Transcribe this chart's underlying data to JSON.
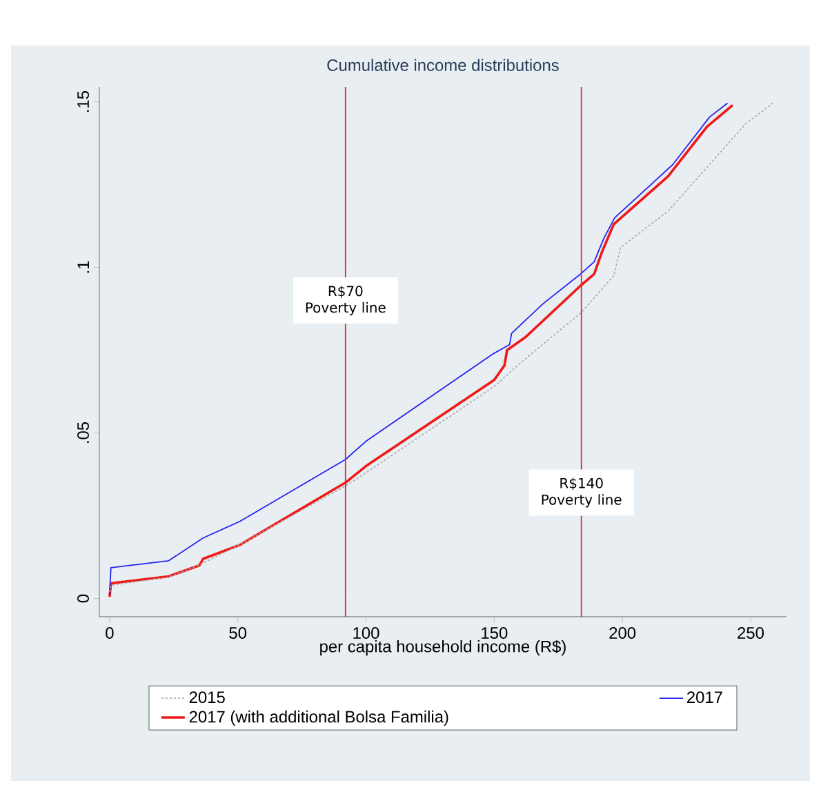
{
  "chart_data": {
    "type": "line",
    "title": "Cumulative income distributions",
    "xlabel": "per capita household income (R$)",
    "xlim": [
      -4,
      264
    ],
    "ylim": [
      -0.0055,
      0.1545
    ],
    "xticks": [
      0,
      50,
      100,
      150,
      200,
      250
    ],
    "yticks": [
      0,
      {
        "value": 0.05,
        "label": ".05"
      },
      {
        "value": 0.1,
        "label": ".1"
      },
      {
        "value": 0.15,
        "label": ".15"
      }
    ],
    "grid": "y",
    "legend": "bottom",
    "series": [
      {
        "name": "2015",
        "color": "#a8a8a8",
        "line_style": "dashed",
        "x": [
          0,
          0.5,
          23,
          36,
          50,
          92,
          100,
          150,
          160,
          184,
          196.6,
          199.3,
          217.8,
          248,
          258.7
        ],
        "values": [
          0.002,
          0.004,
          0.0065,
          0.0105,
          0.016,
          0.034,
          0.038,
          0.064,
          0.071,
          0.0864,
          0.0975,
          0.106,
          0.117,
          0.1433,
          0.1496
        ]
      },
      {
        "name": "2017",
        "color": "#2424f0",
        "line_style": "solid",
        "x": [
          0,
          0.5,
          23,
          36.5,
          50.8,
          92,
          100,
          149.6,
          156,
          156.8,
          169,
          184,
          189,
          192.7,
          197,
          219.6,
          234,
          241
        ],
        "values": [
          0.001,
          0.0093,
          0.0114,
          0.0183,
          0.0233,
          0.042,
          0.0475,
          0.0739,
          0.0767,
          0.0801,
          0.089,
          0.0982,
          0.1017,
          0.1087,
          0.115,
          0.131,
          0.1454,
          0.1496
        ]
      },
      {
        "name": "2017 (with additional Bolsa Familia)",
        "color": "#f01818",
        "line_style": "solid",
        "x": [
          0,
          0.5,
          23,
          35,
          36.5,
          50.8,
          92,
          100,
          150,
          154,
          155,
          162,
          184,
          189,
          192,
          196.6,
          217.8,
          233,
          243
        ],
        "values": [
          0.0005,
          0.0046,
          0.0067,
          0.01,
          0.012,
          0.0162,
          0.035,
          0.04,
          0.066,
          0.0704,
          0.075,
          0.0788,
          0.0947,
          0.098,
          0.1046,
          0.113,
          0.1275,
          0.1425,
          0.149
        ]
      }
    ],
    "ref_lines": [
      {
        "axis": "x",
        "value": 92,
        "label": "R$70 Poverty line",
        "color": "#c8304c"
      },
      {
        "axis": "x",
        "value": 184,
        "label": "R$140 Poverty line",
        "color": "#c8304c"
      }
    ]
  }
}
